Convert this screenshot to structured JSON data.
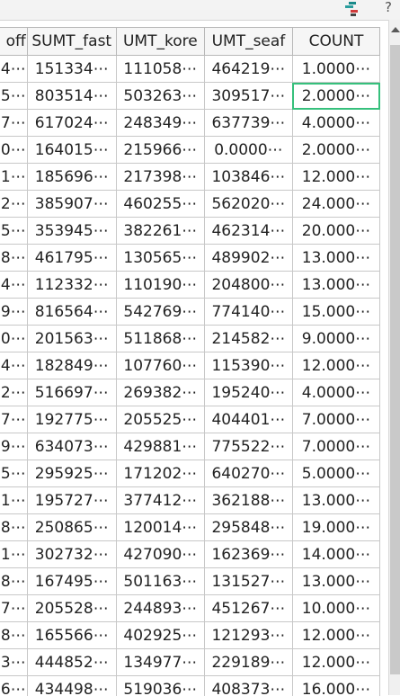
{
  "toolbar": {
    "icon": "grid-layout-icon",
    "help": "?"
  },
  "table": {
    "columns": [
      "off",
      "SUMT_fast",
      "UMT_kore",
      "UMT_seaf",
      "COUNT"
    ],
    "rows": [
      [
        "4⋯",
        "151334⋯",
        "111058⋯",
        "464219⋯",
        "1.0000⋯"
      ],
      [
        "5⋯",
        "803514⋯",
        "503263⋯",
        "309517⋯",
        "2.0000⋯"
      ],
      [
        "7⋯",
        "617024⋯",
        "248349⋯",
        "637739⋯",
        "4.0000⋯"
      ],
      [
        "0⋯",
        "164015⋯",
        "215966⋯",
        "0.0000⋯",
        "2.0000⋯"
      ],
      [
        "1⋯",
        "185696⋯",
        "217398⋯",
        "103846⋯",
        "12.000⋯"
      ],
      [
        "2⋯",
        "385907⋯",
        "460255⋯",
        "562020⋯",
        "24.000⋯"
      ],
      [
        "5⋯",
        "353945⋯",
        "382261⋯",
        "462314⋯",
        "20.000⋯"
      ],
      [
        "8⋯",
        "461795⋯",
        "130565⋯",
        "489902⋯",
        "13.000⋯"
      ],
      [
        "4⋯",
        "112332⋯",
        "110190⋯",
        "204800⋯",
        "13.000⋯"
      ],
      [
        "9⋯",
        "816564⋯",
        "542769⋯",
        "774140⋯",
        "15.000⋯"
      ],
      [
        "0⋯",
        "201563⋯",
        "511868⋯",
        "214582⋯",
        "9.0000⋯"
      ],
      [
        "4⋯",
        "182849⋯",
        "107760⋯",
        "115390⋯",
        "12.000⋯"
      ],
      [
        "2⋯",
        "516697⋯",
        "269382⋯",
        "195240⋯",
        "4.0000⋯"
      ],
      [
        "7⋯",
        "192775⋯",
        "205525⋯",
        "404401⋯",
        "7.0000⋯"
      ],
      [
        "9⋯",
        "634073⋯",
        "429881⋯",
        "775522⋯",
        "7.0000⋯"
      ],
      [
        "5⋯",
        "295925⋯",
        "171202⋯",
        "640270⋯",
        "5.0000⋯"
      ],
      [
        "1⋯",
        "195727⋯",
        "377412⋯",
        "362188⋯",
        "13.000⋯"
      ],
      [
        "8⋯",
        "250865⋯",
        "120014⋯",
        "295848⋯",
        "19.000⋯"
      ],
      [
        "1⋯",
        "302732⋯",
        "427090⋯",
        "162369⋯",
        "14.000⋯"
      ],
      [
        "8⋯",
        "167495⋯",
        "501163⋯",
        "131527⋯",
        "13.000⋯"
      ],
      [
        "7⋯",
        "205528⋯",
        "244893⋯",
        "451267⋯",
        "10.000⋯"
      ],
      [
        "8⋯",
        "165566⋯",
        "402925⋯",
        "121293⋯",
        "12.000⋯"
      ],
      [
        "3⋯",
        "444852⋯",
        "134977⋯",
        "229189⋯",
        "12.000⋯"
      ],
      [
        "6⋯",
        "434498⋯",
        "519036⋯",
        "408373⋯",
        "16.000⋯"
      ]
    ],
    "selected_row": 1,
    "selected_col": 4
  },
  "colors": {
    "selection": "#36c07c",
    "icon_teal": "#1a8a8a",
    "icon_red": "#d03a3a"
  }
}
